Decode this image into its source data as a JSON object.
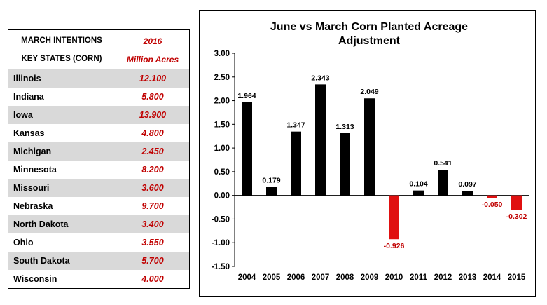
{
  "table": {
    "header_left_1": "MARCH INTENTIONS",
    "header_left_2": "KEY STATES (CORN)",
    "header_right_1": "2016",
    "header_right_2": "Million Acres",
    "rows": [
      {
        "state": "Illinois",
        "value": "12.100"
      },
      {
        "state": "Indiana",
        "value": "5.800"
      },
      {
        "state": "Iowa",
        "value": "13.900"
      },
      {
        "state": "Kansas",
        "value": "4.800"
      },
      {
        "state": "Michigan",
        "value": "2.450"
      },
      {
        "state": "Minnesota",
        "value": "8.200"
      },
      {
        "state": "Missouri",
        "value": "3.600"
      },
      {
        "state": "Nebraska",
        "value": "9.700"
      },
      {
        "state": "North Dakota",
        "value": "3.400"
      },
      {
        "state": "Ohio",
        "value": "3.550"
      },
      {
        "state": "South Dakota",
        "value": "5.700"
      },
      {
        "state": "Wisconsin",
        "value": "4.000"
      }
    ]
  },
  "chart_data": {
    "type": "bar",
    "title_line1": "June vs March Corn Planted Acreage",
    "title_line2": "Adjustment",
    "categories": [
      "2004",
      "2005",
      "2006",
      "2007",
      "2008",
      "2009",
      "2010",
      "2011",
      "2012",
      "2013",
      "2014",
      "2015"
    ],
    "values": [
      1.964,
      0.179,
      1.347,
      2.343,
      1.313,
      2.049,
      -0.926,
      0.104,
      0.541,
      0.097,
      -0.05,
      -0.302
    ],
    "labels": [
      "1.964",
      "0.179",
      "1.347",
      "2.343",
      "1.313",
      "2.049",
      "-0.926",
      "0.104",
      "0.541",
      "0.097",
      "-0.050",
      "-0.302"
    ],
    "yticks": [
      "3.00",
      "2.50",
      "2.00",
      "1.50",
      "1.00",
      "0.50",
      "0.00",
      "-0.50",
      "-1.00",
      "-1.50"
    ],
    "ylim": [
      -1.5,
      3.0
    ],
    "colors": {
      "positive": "#000000",
      "negative": "#e01010",
      "negative_label": "#c00000"
    },
    "grid": false,
    "xlabel": "",
    "ylabel": ""
  }
}
